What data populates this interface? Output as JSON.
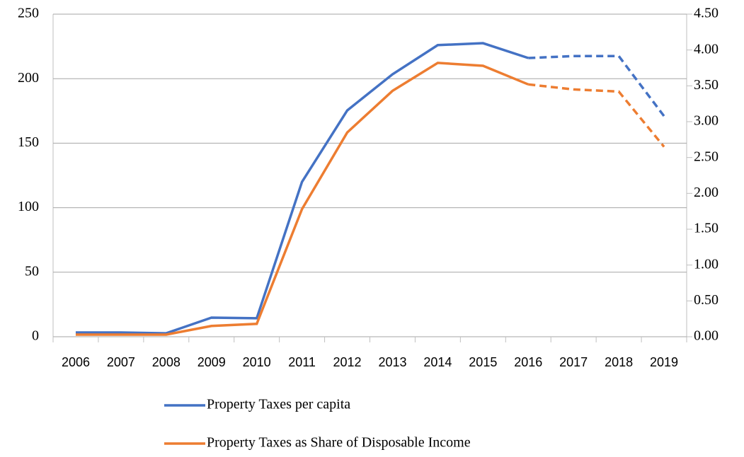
{
  "chart_data": {
    "type": "line",
    "categories": [
      "2006",
      "2007",
      "2008",
      "2009",
      "2010",
      "2011",
      "2012",
      "2013",
      "2014",
      "2015",
      "2016",
      "2017",
      "2018",
      "2019"
    ],
    "series": [
      {
        "name": "Property Taxes per capita",
        "color": "#4472c4",
        "axis": "y",
        "dashed_from": "2016",
        "values": [
          3.3,
          3.3,
          2.7,
          14.8,
          14.3,
          120,
          175.4,
          203.4,
          226,
          227.5,
          216,
          217.5,
          217.5,
          171
        ]
      },
      {
        "name": "Property Taxes as Share of Disposable Income",
        "color": "#ed7d31",
        "axis": "y2",
        "dashed_from": "2016",
        "values": [
          0.03,
          0.03,
          0.03,
          0.15,
          0.18,
          1.78,
          2.85,
          3.43,
          3.82,
          3.78,
          3.52,
          3.45,
          3.42,
          2.65
        ]
      }
    ],
    "ylim": [
      0,
      250
    ],
    "yticks": [
      0,
      50,
      100,
      150,
      200,
      250
    ],
    "y2lim": [
      0,
      4.5
    ],
    "y2ticks": [
      {
        "value": 0,
        "label": "0.00"
      },
      {
        "value": 0.5,
        "label": "0.50"
      },
      {
        "value": 1,
        "label": "1.00"
      },
      {
        "value": 1.5,
        "label": "1.50"
      },
      {
        "value": 2,
        "label": "2.00"
      },
      {
        "value": 2.5,
        "label": "2.50"
      },
      {
        "value": 3,
        "label": "3.00"
      },
      {
        "value": 3.5,
        "label": "3.50"
      },
      {
        "value": 4,
        "label": "4.00"
      },
      {
        "value": 4.5,
        "label": "4.50"
      }
    ],
    "grid": true,
    "legend": "bottom"
  }
}
